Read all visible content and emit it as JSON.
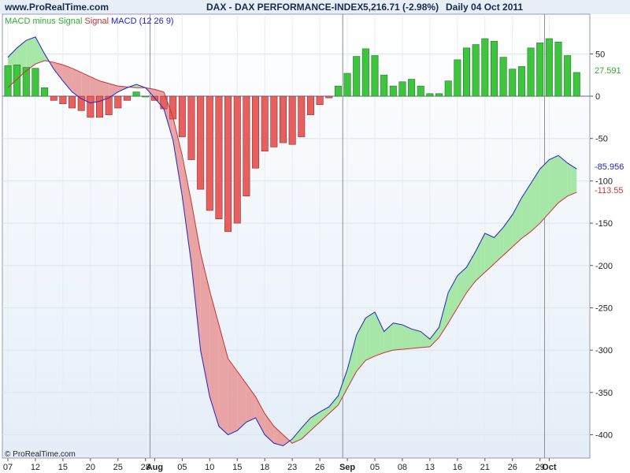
{
  "header": {
    "site": "www.ProRealTime.com",
    "title": "DAX - DAX PERFORMANCE-INDEX",
    "price": "5,216.71 (-2.98%)",
    "period": "Daily  04 Oct 2011"
  },
  "copyright": "© ProRealTime.com",
  "legend": {
    "hist_label": "MACD minus Signal",
    "signal_label": "Signal",
    "macd_label": "MACD (12 26 9)"
  },
  "value_labels": {
    "histogram": "27.591",
    "macd": "-85.956",
    "signal": "-113.55"
  },
  "colors": {
    "positive": "#3ec43e",
    "negative": "#e66060",
    "macd_line": "#2222cc",
    "signal_line": "#cc3333",
    "fill_pos": "#a6e6a6",
    "fill_neg": "#e8a4a4"
  },
  "chart_data": {
    "type": "bar",
    "title": "DAX - DAX PERFORMANCE-INDEX",
    "ylim": [
      -420,
      95
    ],
    "yticks": [
      {
        "value": 50,
        "label": "50"
      },
      {
        "value": 0,
        "label": "0"
      },
      {
        "value": -50,
        "label": "-50"
      },
      {
        "value": -100,
        "label": "-100"
      },
      {
        "value": -150,
        "label": "-150"
      },
      {
        "value": -200,
        "label": "-200"
      },
      {
        "value": -250,
        "label": "-250"
      },
      {
        "value": -300,
        "label": "-300"
      },
      {
        "value": -350,
        "label": "-350"
      },
      {
        "value": -400,
        "label": "-400"
      }
    ],
    "xticks": [
      {
        "index": 0,
        "label": "07"
      },
      {
        "index": 3,
        "label": "12"
      },
      {
        "index": 6,
        "label": "15"
      },
      {
        "index": 9,
        "label": "20"
      },
      {
        "index": 12,
        "label": "25"
      },
      {
        "index": 15,
        "label": "28"
      },
      {
        "index": 16,
        "label": "Aug",
        "bold": true
      },
      {
        "index": 19,
        "label": "05"
      },
      {
        "index": 22,
        "label": "10"
      },
      {
        "index": 25,
        "label": "15"
      },
      {
        "index": 28,
        "label": "18"
      },
      {
        "index": 31,
        "label": "23"
      },
      {
        "index": 34,
        "label": "26"
      },
      {
        "index": 37,
        "label": "Sep",
        "bold": true
      },
      {
        "index": 40,
        "label": "05"
      },
      {
        "index": 43,
        "label": "08"
      },
      {
        "index": 46,
        "label": "13"
      },
      {
        "index": 49,
        "label": "16"
      },
      {
        "index": 52,
        "label": "21"
      },
      {
        "index": 55,
        "label": "26"
      },
      {
        "index": 58,
        "label": "29"
      },
      {
        "index": 59,
        "label": "Oct",
        "bold": true
      }
    ],
    "month_lines": [
      16,
      37,
      59
    ],
    "series": [
      {
        "name": "MACD minus Signal",
        "type": "bar",
        "values": [
          36,
          37,
          34,
          33,
          10,
          -5,
          -9,
          -14,
          -17,
          -25,
          -25,
          -22,
          -14,
          -5,
          5,
          0,
          -5,
          -15,
          -27,
          -48,
          -75,
          -110,
          -135,
          -145,
          -160,
          -150,
          -118,
          -85,
          -65,
          -60,
          -55,
          -57,
          -48,
          -22,
          -10,
          -2,
          12,
          27,
          47,
          56,
          48,
          25,
          12,
          17,
          20,
          12,
          3,
          3,
          18,
          43,
          57,
          61,
          68,
          65,
          46,
          32,
          35,
          57,
          63,
          68,
          64,
          48,
          28
        ]
      },
      {
        "name": "Signal",
        "type": "line",
        "values": [
          10,
          20,
          30,
          38,
          42,
          40,
          37,
          33,
          28,
          23,
          18,
          15,
          12,
          11,
          10,
          10,
          8,
          5,
          -25,
          -70,
          -125,
          -185,
          -230,
          -270,
          -310,
          -325,
          -340,
          -355,
          -375,
          -390,
          -400,
          -410,
          -405,
          -395,
          -385,
          -375,
          -365,
          -345,
          -325,
          -312,
          -307,
          -303,
          -300,
          -299,
          -298,
          -297,
          -296,
          -285,
          -268,
          -250,
          -232,
          -218,
          -208,
          -198,
          -188,
          -178,
          -168,
          -160,
          -150,
          -138,
          -126,
          -118,
          -113.55
        ]
      },
      {
        "name": "MACD (12 26 9)",
        "type": "line",
        "values": [
          46,
          57,
          66,
          70,
          50,
          32,
          18,
          5,
          -3,
          -8,
          -6,
          -2,
          5,
          10,
          14,
          10,
          -2,
          -15,
          -52,
          -118,
          -198,
          -300,
          -355,
          -390,
          -400,
          -395,
          -385,
          -380,
          -400,
          -410,
          -413,
          -405,
          -392,
          -380,
          -373,
          -367,
          -354,
          -323,
          -282,
          -262,
          -255,
          -278,
          -268,
          -270,
          -275,
          -278,
          -287,
          -273,
          -232,
          -212,
          -202,
          -183,
          -162,
          -167,
          -155,
          -140,
          -120,
          -103,
          -86,
          -75,
          -70,
          -79,
          -85.956
        ]
      }
    ]
  }
}
